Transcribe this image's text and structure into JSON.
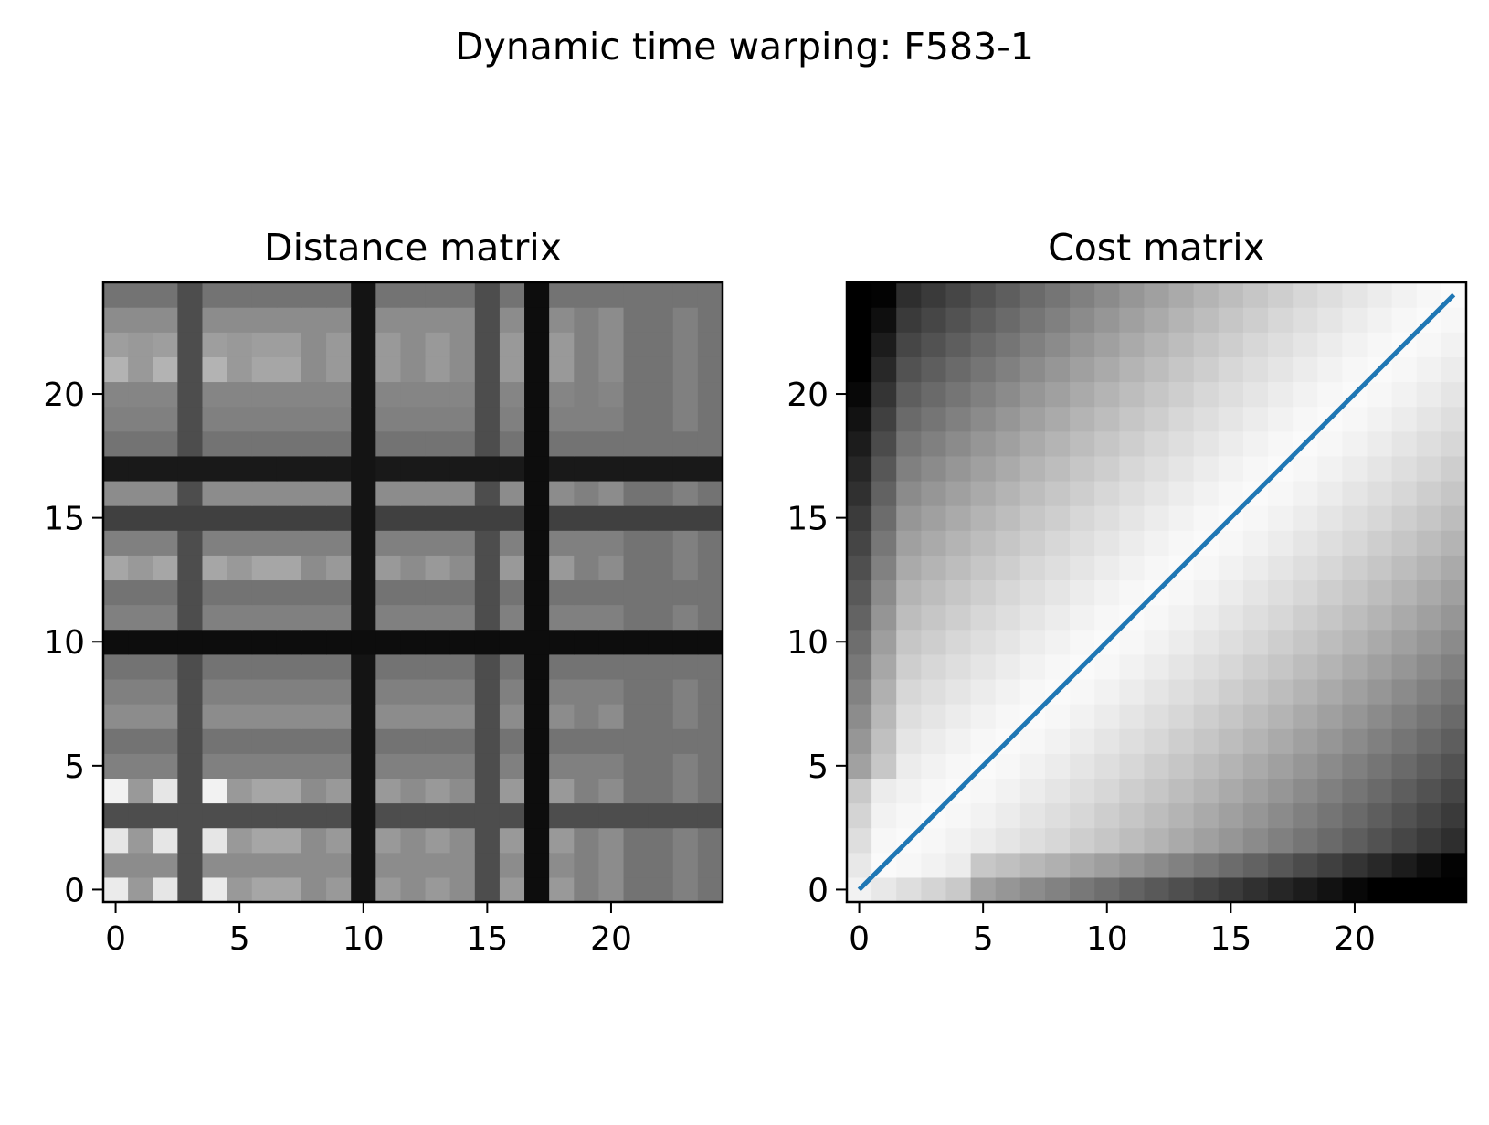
{
  "figure": {
    "suptitle": "Dynamic time warping: F583-1"
  },
  "chart_data": [
    {
      "type": "heatmap",
      "title": "Distance matrix",
      "xlabel": "",
      "ylabel": "",
      "colormap": "gray_r",
      "origin": "lower",
      "size": 25,
      "xlim": [
        -0.5,
        24.5
      ],
      "ylim": [
        -0.5,
        24.5
      ],
      "xticks": [
        0,
        5,
        10,
        15,
        20
      ],
      "yticks": [
        0,
        5,
        10,
        15,
        20
      ],
      "xtick_labels": [
        "0",
        "5",
        "10",
        "15",
        "20"
      ],
      "ytick_labels": [
        "0",
        "5",
        "10",
        "15",
        "20"
      ],
      "grid": false,
      "row_profile": [
        0.08,
        0.45,
        0.1,
        0.7,
        0.05,
        0.5,
        0.55,
        0.45,
        0.5,
        0.55,
        0.95,
        0.5,
        0.55,
        0.35,
        0.5,
        0.75,
        0.45,
        0.9,
        0.55,
        0.5,
        0.48,
        0.3,
        0.38,
        0.45,
        0.55
      ],
      "col_profile": [
        0.05,
        0.4,
        0.1,
        0.7,
        0.05,
        0.4,
        0.35,
        0.35,
        0.45,
        0.4,
        0.92,
        0.4,
        0.45,
        0.4,
        0.45,
        0.7,
        0.4,
        0.95,
        0.4,
        0.5,
        0.45,
        0.55,
        0.55,
        0.5,
        0.55
      ]
    },
    {
      "type": "heatmap",
      "title": "Cost matrix",
      "xlabel": "",
      "ylabel": "",
      "colormap": "gray_r",
      "origin": "lower",
      "size": 25,
      "xlim": [
        -0.5,
        24.5
      ],
      "ylim": [
        -0.5,
        24.5
      ],
      "xticks": [
        0,
        5,
        10,
        15,
        20
      ],
      "yticks": [
        0,
        5,
        10,
        15,
        20
      ],
      "xtick_labels": [
        "0",
        "5",
        "10",
        "15",
        "20"
      ],
      "ytick_labels": [
        "0",
        "5",
        "10",
        "15",
        "20"
      ],
      "grid": false,
      "warping_path": {
        "x": [
          0,
          24
        ],
        "y": [
          0,
          24
        ],
        "color": "#1f77b4"
      }
    }
  ]
}
